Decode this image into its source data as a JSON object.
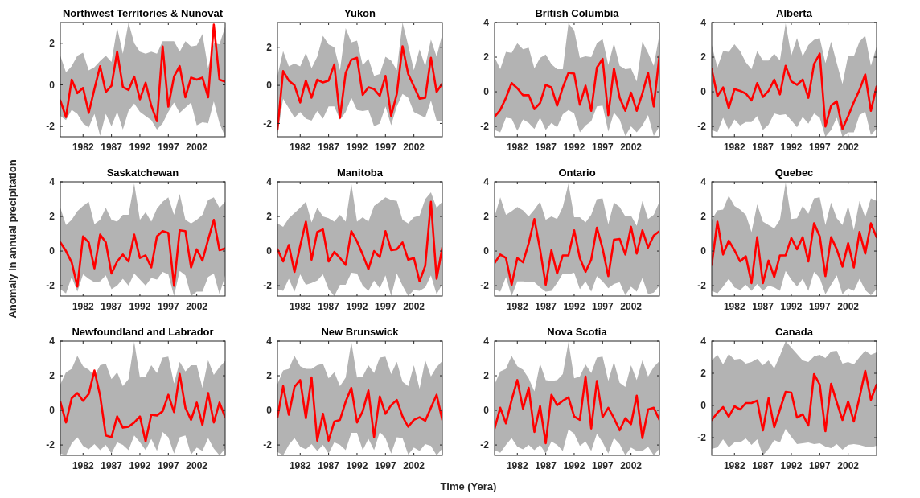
{
  "chart_data": [
    {
      "type": "line",
      "title": "Northwest Territories & Nunovat",
      "x": [
        1978,
        1979,
        1980,
        1981,
        1982,
        1983,
        1984,
        1985,
        1986,
        1987,
        1988,
        1989,
        1990,
        1991,
        1992,
        1993,
        1994,
        1995,
        1996,
        1997,
        1998,
        1999,
        2000,
        2001,
        2002,
        2003,
        2004,
        2005,
        2006,
        2007
      ],
      "xlim": [
        1978,
        2007
      ],
      "xticks": [
        1982,
        1987,
        1992,
        1997,
        2002
      ],
      "ylim": [
        -2.5,
        3
      ],
      "yticks": [
        -2,
        0,
        2
      ],
      "series": [
        {
          "color": "#ff0000",
          "values": [
            -0.75,
            -1.55,
            0.25,
            -0.4,
            -0.15,
            -1.35,
            -0.2,
            0.9,
            -0.35,
            -0.05,
            1.6,
            -0.1,
            -0.25,
            0.4,
            -0.7,
            0.1,
            -1.0,
            -1.75,
            1.85,
            -1.05,
            0.4,
            0.9,
            -0.6,
            0.35,
            0.25,
            0.35,
            -0.6,
            2.9,
            0.25,
            0.15
          ],
          "upper": [
            1.4,
            0.6,
            0.9,
            1.4,
            1.55,
            0.7,
            0.85,
            1.15,
            1.4,
            1.1,
            2.75,
            1.5,
            3.0,
            2.0,
            1.6,
            1.5,
            1.6,
            1.5,
            2.1,
            2.1,
            2.1,
            1.6,
            2.1,
            1.85,
            1.9,
            2.45,
            0.8,
            2.0,
            1.95,
            2.8
          ],
          "lower": [
            -1.5,
            -1.7,
            -1.2,
            -1.4,
            -1.85,
            -2.05,
            -1.4,
            -2.45,
            -1.4,
            -2.0,
            -1.3,
            -2.15,
            -1.25,
            -0.9,
            -1.3,
            -1.5,
            -1.7,
            -2.15,
            -1.85,
            -1.3,
            -0.85,
            -1.35,
            -1.1,
            -0.85,
            -1.95,
            -1.8,
            -1.85,
            -0.8,
            -1.85,
            -2.5
          ]
        }
      ]
    },
    {
      "type": "line",
      "title": "Yukon",
      "x": [
        1978,
        1979,
        1980,
        1981,
        1982,
        1983,
        1984,
        1985,
        1986,
        1987,
        1988,
        1989,
        1990,
        1991,
        1992,
        1993,
        1994,
        1995,
        1996,
        1997,
        1998,
        1999,
        2000,
        2001,
        2002,
        2003,
        2004,
        2005,
        2006,
        2007
      ],
      "xlim": [
        1978,
        2007
      ],
      "xticks": [
        1982,
        1987,
        1992,
        1997,
        2002
      ],
      "ylim": [
        -2.7,
        3.3
      ],
      "yticks": [
        -2,
        0,
        2
      ],
      "series": [
        {
          "color": "#ff0000",
          "values": [
            -2.3,
            0.75,
            0.25,
            0.0,
            -0.9,
            0.25,
            -0.65,
            0.3,
            0.15,
            0.25,
            1.1,
            -1.7,
            0.65,
            1.35,
            1.45,
            -0.5,
            -0.1,
            -0.2,
            -0.55,
            0.5,
            -1.6,
            -0.45,
            2.05,
            0.6,
            -0.05,
            -0.7,
            -0.65,
            1.45,
            -0.35,
            0.1
          ],
          "upper": [
            0.5,
            1.8,
            1.0,
            1.15,
            1.0,
            1.7,
            0.9,
            1.5,
            2.6,
            2.15,
            2.0,
            0.8,
            3.0,
            2.25,
            2.35,
            1.05,
            1.4,
            0.5,
            0.6,
            1.5,
            1.3,
            0.8,
            3.3,
            2.1,
            0.8,
            1.9,
            1.0,
            2.4,
            1.5,
            2.7
          ],
          "lower": [
            -2.6,
            -0.7,
            -1.2,
            -1.7,
            -1.4,
            -1.75,
            -1.85,
            -1.35,
            -1.75,
            -1.1,
            -1.1,
            -1.8,
            -1.4,
            -0.65,
            -1.3,
            -1.35,
            -1.3,
            -2.15,
            -2.0,
            -1.1,
            -2.1,
            -1.1,
            -0.45,
            -0.65,
            -1.4,
            -1.55,
            -1.7,
            -0.8,
            -1.85,
            -1.9
          ]
        }
      ]
    },
    {
      "type": "line",
      "title": "British Columbia",
      "x": [
        1978,
        1979,
        1980,
        1981,
        1982,
        1983,
        1984,
        1985,
        1986,
        1987,
        1988,
        1989,
        1990,
        1991,
        1992,
        1993,
        1994,
        1995,
        1996,
        1997,
        1998,
        1999,
        2000,
        2001,
        2002,
        2003,
        2004,
        2005,
        2006,
        2007
      ],
      "xlim": [
        1978,
        2007
      ],
      "xticks": [
        1982,
        1987,
        1992,
        1997,
        2002
      ],
      "ylim": [
        -2.6,
        4
      ],
      "yticks": [
        -2,
        0,
        2,
        4
      ],
      "series": [
        {
          "color": "#ff0000",
          "values": [
            -1.45,
            -1.05,
            -0.35,
            0.5,
            0.2,
            -0.2,
            -0.2,
            -1.0,
            -0.65,
            0.4,
            0.25,
            -0.8,
            0.25,
            1.1,
            1.05,
            -0.75,
            0.35,
            -1.1,
            1.4,
            1.9,
            -1.35,
            1.35,
            -0.35,
            -1.1,
            -0.05,
            -1.1,
            -0.1,
            1.1,
            -0.85,
            2.1
          ],
          "upper": [
            2.0,
            1.3,
            2.3,
            2.25,
            2.8,
            2.45,
            2.55,
            1.35,
            1.95,
            2.15,
            1.6,
            1.3,
            1.3,
            3.95,
            3.55,
            1.95,
            2.05,
            2.0,
            2.8,
            3.05,
            1.55,
            2.8,
            1.5,
            1.3,
            1.35,
            0.6,
            2.9,
            2.25,
            1.5,
            3.3
          ],
          "lower": [
            -2.2,
            -2.35,
            -1.5,
            -1.55,
            -2.25,
            -1.6,
            -1.8,
            -2.15,
            -1.5,
            -2.2,
            -1.8,
            -2.05,
            -1.3,
            -1.05,
            -1.25,
            -2.35,
            -1.95,
            -1.7,
            -0.85,
            -0.8,
            -2.3,
            -1.2,
            -1.6,
            -2.55,
            -2.0,
            -2.35,
            -1.95,
            -1.35,
            -2.55,
            -2.0
          ]
        }
      ]
    },
    {
      "type": "line",
      "title": "Alberta",
      "x": [
        1978,
        1979,
        1980,
        1981,
        1982,
        1983,
        1984,
        1985,
        1986,
        1987,
        1988,
        1989,
        1990,
        1991,
        1992,
        1993,
        1994,
        1995,
        1996,
        1997,
        1998,
        1999,
        2000,
        2001,
        2002,
        2003,
        2004,
        2005,
        2006,
        2007
      ],
      "xlim": [
        1978,
        2007
      ],
      "xticks": [
        1982,
        1987,
        1992,
        1997,
        2002
      ],
      "ylim": [
        -2.6,
        4
      ],
      "yticks": [
        -2,
        0,
        2,
        4
      ],
      "series": [
        {
          "color": "#ff0000",
          "values": [
            1.3,
            -0.25,
            0.25,
            -0.95,
            0.15,
            0.05,
            -0.1,
            -0.5,
            0.5,
            -0.3,
            0.05,
            0.7,
            -0.15,
            1.5,
            0.6,
            0.4,
            0.7,
            -0.35,
            1.6,
            2.2,
            -2.0,
            -0.8,
            -0.55,
            -2.15,
            -1.4,
            -0.6,
            0.1,
            1.0,
            -1.1,
            0.3
          ],
          "upper": [
            2.7,
            1.4,
            2.35,
            2.3,
            2.75,
            2.35,
            1.7,
            1.3,
            2.35,
            1.8,
            1.8,
            2.2,
            1.8,
            3.95,
            2.1,
            3.1,
            2.05,
            2.7,
            3.0,
            3.1,
            1.65,
            2.9,
            1.65,
            0.45,
            2.1,
            2.05,
            2.9,
            3.25,
            1.5,
            2.6
          ],
          "lower": [
            -2.2,
            -2.35,
            -1.5,
            -2.2,
            -1.6,
            -1.95,
            -1.75,
            -1.75,
            -1.4,
            -2.2,
            -1.9,
            -1.25,
            -1.35,
            -1.3,
            -1.65,
            -2.05,
            -1.45,
            -1.85,
            -1.25,
            -1.5,
            -2.6,
            -2.2,
            -1.5,
            -2.6,
            -2.35,
            -2.35,
            -1.35,
            -1.15,
            -2.5,
            -2.15
          ]
        }
      ]
    },
    {
      "type": "line",
      "title": "Saskatchewan",
      "ylabel": "Anomaly in annual precipitation",
      "x": [
        1978,
        1979,
        1980,
        1981,
        1982,
        1983,
        1984,
        1985,
        1986,
        1987,
        1988,
        1989,
        1990,
        1991,
        1992,
        1993,
        1994,
        1995,
        1996,
        1997,
        1998,
        1999,
        2000,
        2001,
        2002,
        2003,
        2004,
        2005,
        2006,
        2007
      ],
      "xlim": [
        1978,
        2007
      ],
      "xticks": [
        1982,
        1987,
        1992,
        1997,
        2002
      ],
      "ylim": [
        -2.6,
        4
      ],
      "yticks": [
        -2,
        0,
        2,
        4
      ],
      "series": [
        {
          "color": "#ff0000",
          "values": [
            0.5,
            0.0,
            -0.65,
            -2.05,
            0.85,
            0.5,
            -1.0,
            0.95,
            0.5,
            -1.3,
            -0.6,
            -0.2,
            -0.6,
            0.95,
            -0.4,
            -0.25,
            -0.95,
            0.85,
            1.15,
            1.05,
            -2.0,
            1.2,
            1.15,
            -0.95,
            0.1,
            -0.55,
            0.65,
            1.8,
            0.05,
            0.15
          ],
          "upper": [
            2.5,
            1.5,
            1.8,
            2.3,
            2.6,
            2.85,
            1.55,
            1.8,
            2.5,
            1.8,
            1.7,
            2.1,
            2.1,
            3.9,
            1.8,
            2.25,
            1.7,
            2.45,
            2.85,
            3.1,
            2.1,
            3.3,
            1.8,
            1.6,
            1.8,
            2.1,
            2.95,
            3.1,
            2.5,
            2.85
          ],
          "lower": [
            -2.2,
            -2.45,
            -1.5,
            -2.35,
            -1.35,
            -1.6,
            -1.8,
            -1.75,
            -1.4,
            -2.2,
            -2.0,
            -1.6,
            -2.0,
            -1.3,
            -1.65,
            -2.0,
            -1.55,
            -1.65,
            -1.2,
            -1.35,
            -2.6,
            -1.15,
            -1.4,
            -2.6,
            -2.35,
            -2.35,
            -1.5,
            -1.3,
            -2.5,
            -1.4
          ]
        }
      ]
    },
    {
      "type": "line",
      "title": "Manitoba",
      "x": [
        1978,
        1979,
        1980,
        1981,
        1982,
        1983,
        1984,
        1985,
        1986,
        1987,
        1988,
        1989,
        1990,
        1991,
        1992,
        1993,
        1994,
        1995,
        1996,
        1997,
        1998,
        1999,
        2000,
        2001,
        2002,
        2003,
        2004,
        2005,
        2006,
        2007
      ],
      "xlim": [
        1978,
        2007
      ],
      "xticks": [
        1982,
        1987,
        1992,
        1997,
        2002
      ],
      "ylim": [
        -2.6,
        4
      ],
      "yticks": [
        -2,
        0,
        2,
        4
      ],
      "series": [
        {
          "color": "#ff0000",
          "values": [
            0.1,
            -0.6,
            0.35,
            -1.2,
            0.3,
            1.7,
            -0.5,
            1.1,
            1.25,
            -0.6,
            -0.05,
            -0.4,
            -0.8,
            1.15,
            0.55,
            -0.2,
            -1.05,
            0.0,
            -0.35,
            1.15,
            0.05,
            0.1,
            0.5,
            -0.5,
            -0.4,
            -1.75,
            -0.85,
            2.85,
            -1.6,
            0.2
          ],
          "upper": [
            1.6,
            1.4,
            1.9,
            2.2,
            2.5,
            2.85,
            1.65,
            2.5,
            2.0,
            1.9,
            1.7,
            2.1,
            1.7,
            3.9,
            1.7,
            1.95,
            1.7,
            2.6,
            2.85,
            3.1,
            2.95,
            2.9,
            1.8,
            1.6,
            1.95,
            2.05,
            3.0,
            3.4,
            2.5,
            2.85
          ],
          "lower": [
            -2.2,
            -2.3,
            -1.6,
            -2.35,
            -1.35,
            -1.95,
            -1.85,
            -1.7,
            -1.35,
            -2.2,
            -2.6,
            -1.95,
            -1.95,
            -1.25,
            -1.3,
            -2.0,
            -2.3,
            -1.7,
            -2.15,
            -1.4,
            -2.6,
            -1.3,
            -2.0,
            -2.6,
            -2.25,
            -2.3,
            -2.1,
            -1.4,
            -2.5,
            -1.9
          ]
        }
      ]
    },
    {
      "type": "line",
      "title": "Ontario",
      "x": [
        1978,
        1979,
        1980,
        1981,
        1982,
        1983,
        1984,
        1985,
        1986,
        1987,
        1988,
        1989,
        1990,
        1991,
        1992,
        1993,
        1994,
        1995,
        1996,
        1997,
        1998,
        1999,
        2000,
        2001,
        2002,
        2003,
        2004,
        2005,
        2006,
        2007
      ],
      "xlim": [
        1978,
        2007
      ],
      "xticks": [
        1982,
        1987,
        1992,
        1997,
        2002
      ],
      "ylim": [
        -2.6,
        4
      ],
      "yticks": [
        -2,
        0,
        2,
        4
      ],
      "series": [
        {
          "color": "#ff0000",
          "values": [
            -0.7,
            -0.2,
            -0.4,
            -1.95,
            -0.4,
            -0.65,
            0.45,
            1.85,
            0.1,
            -1.95,
            0.05,
            -1.3,
            -0.25,
            -0.25,
            1.2,
            -0.4,
            -1.2,
            -0.5,
            1.35,
            0.15,
            -1.45,
            0.65,
            0.7,
            -0.2,
            1.4,
            -0.15,
            1.2,
            0.2,
            0.9,
            1.15
          ],
          "upper": [
            2.0,
            3.1,
            2.1,
            2.3,
            2.55,
            2.35,
            2.0,
            2.4,
            2.85,
            1.8,
            2.0,
            1.85,
            2.55,
            3.9,
            1.95,
            1.95,
            1.65,
            2.1,
            3.0,
            3.05,
            1.55,
            2.8,
            2.55,
            2.0,
            2.05,
            1.45,
            2.9,
            1.85,
            2.1,
            2.85
          ],
          "lower": [
            -2.2,
            -2.35,
            -1.5,
            -2.6,
            -1.75,
            -1.75,
            -1.8,
            -1.8,
            -2.1,
            -2.35,
            -2.3,
            -1.85,
            -1.3,
            -1.35,
            -1.25,
            -2.2,
            -1.75,
            -2.35,
            -1.45,
            -1.75,
            -2.15,
            -1.9,
            -1.8,
            -2.55,
            -2.05,
            -2.35,
            -1.55,
            -2.5,
            -2.4,
            -2.0
          ]
        }
      ]
    },
    {
      "type": "line",
      "title": "Quebec",
      "x": [
        1978,
        1979,
        1980,
        1981,
        1982,
        1983,
        1984,
        1985,
        1986,
        1987,
        1988,
        1989,
        1990,
        1991,
        1992,
        1993,
        1994,
        1995,
        1996,
        1997,
        1998,
        1999,
        2000,
        2001,
        2002,
        2003,
        2004,
        2005,
        2006,
        2007
      ],
      "xlim": [
        1978,
        2007
      ],
      "xticks": [
        1982,
        1987,
        1992,
        1997,
        2002
      ],
      "ylim": [
        -2.6,
        4
      ],
      "yticks": [
        -2,
        0,
        2,
        4
      ],
      "series": [
        {
          "color": "#ff0000",
          "values": [
            -0.8,
            1.7,
            -0.2,
            0.6,
            0.05,
            -0.6,
            -0.3,
            -1.85,
            0.8,
            -1.85,
            -0.55,
            -1.5,
            -0.25,
            -0.25,
            0.75,
            0.1,
            0.8,
            -0.6,
            1.6,
            0.85,
            -1.45,
            0.8,
            0.1,
            -0.9,
            0.45,
            -0.95,
            1.1,
            -0.15,
            1.6,
            0.8
          ],
          "upper": [
            1.8,
            2.35,
            2.4,
            3.2,
            2.6,
            2.4,
            2.1,
            1.1,
            2.7,
            1.7,
            1.5,
            1.3,
            1.8,
            3.95,
            1.85,
            1.9,
            2.6,
            2.15,
            3.05,
            3.1,
            1.5,
            2.8,
            1.9,
            1.5,
            2.6,
            1.2,
            2.9,
            1.95,
            3.05,
            2.9
          ],
          "lower": [
            -2.3,
            -2.45,
            -2.05,
            -1.6,
            -2.1,
            -2.25,
            -1.95,
            -2.3,
            -1.9,
            -2.3,
            -2.0,
            -2.1,
            -2.3,
            -1.15,
            -1.65,
            -2.05,
            -1.6,
            -2.3,
            -1.2,
            -1.55,
            -2.5,
            -1.95,
            -1.4,
            -2.5,
            -2.15,
            -2.3,
            -1.6,
            -2.25,
            -2.55,
            -2.2
          ]
        }
      ]
    },
    {
      "type": "line",
      "title": "Newfoundland and Labrador",
      "x": [
        1978,
        1979,
        1980,
        1981,
        1982,
        1983,
        1984,
        1985,
        1986,
        1987,
        1988,
        1989,
        1990,
        1991,
        1992,
        1993,
        1994,
        1995,
        1996,
        1997,
        1998,
        1999,
        2000,
        2001,
        2002,
        2003,
        2004,
        2005,
        2006,
        2007
      ],
      "xlim": [
        1978,
        2007
      ],
      "xticks": [
        1982,
        1987,
        1992,
        1997,
        2002
      ],
      "ylim": [
        -2.6,
        4
      ],
      "yticks": [
        -2,
        0,
        2,
        4
      ],
      "series": [
        {
          "color": "#ff0000",
          "values": [
            0.5,
            -0.7,
            0.7,
            1.0,
            0.55,
            0.95,
            2.3,
            0.85,
            -1.45,
            -1.55,
            -0.35,
            -1.0,
            -0.95,
            -0.7,
            -0.35,
            -1.8,
            -0.25,
            -0.3,
            -0.05,
            0.9,
            -0.1,
            2.1,
            0.15,
            -0.55,
            0.45,
            -0.85,
            1.0,
            -0.7,
            0.45,
            -0.4
          ],
          "upper": [
            1.5,
            2.2,
            2.4,
            3.15,
            2.55,
            2.35,
            2.0,
            2.6,
            2.7,
            1.8,
            2.2,
            1.4,
            1.8,
            3.95,
            1.9,
            1.95,
            2.6,
            2.15,
            3.05,
            3.1,
            1.55,
            2.8,
            2.25,
            2.6,
            2.6,
            1.3,
            2.9,
            2.05,
            2.5,
            2.85
          ],
          "lower": [
            -2.5,
            -2.6,
            -1.9,
            -1.55,
            -2.05,
            -2.25,
            -1.95,
            -2.3,
            -2.0,
            -2.5,
            -1.85,
            -2.0,
            -2.3,
            -1.45,
            -1.85,
            -2.3,
            -1.65,
            -2.35,
            -1.25,
            -1.55,
            -2.5,
            -1.55,
            -1.45,
            -2.55,
            -2.15,
            -2.35,
            -1.6,
            -2.2,
            -2.6,
            -2.2
          ]
        }
      ]
    },
    {
      "type": "line",
      "title": "New Brunswick",
      "xlabel": "Time (Yera)",
      "x": [
        1978,
        1979,
        1980,
        1981,
        1982,
        1983,
        1984,
        1985,
        1986,
        1987,
        1988,
        1989,
        1990,
        1991,
        1992,
        1993,
        1994,
        1995,
        1996,
        1997,
        1998,
        1999,
        2000,
        2001,
        2002,
        2003,
        2004,
        2005,
        2006,
        2007
      ],
      "xlim": [
        1978,
        2007
      ],
      "xticks": [
        1982,
        1987,
        1992,
        1997,
        2002
      ],
      "ylim": [
        -2.6,
        4
      ],
      "yticks": [
        -2,
        0,
        2,
        4
      ],
      "series": [
        {
          "color": "#ff0000",
          "values": [
            -0.4,
            1.4,
            -0.25,
            1.35,
            1.75,
            -0.45,
            1.9,
            -1.75,
            -0.2,
            -1.75,
            -0.65,
            -0.55,
            0.5,
            1.3,
            -0.7,
            -0.05,
            1.15,
            -1.55,
            0.8,
            -0.2,
            0.3,
            0.6,
            -0.35,
            -0.95,
            -0.55,
            -0.4,
            -0.6,
            0.15,
            0.9,
            -0.55
          ],
          "upper": [
            1.5,
            2.3,
            2.4,
            3.15,
            2.55,
            2.4,
            2.4,
            2.6,
            2.7,
            1.85,
            2.2,
            1.4,
            1.9,
            3.95,
            1.9,
            1.95,
            2.6,
            2.15,
            3.05,
            3.1,
            2.1,
            2.8,
            1.65,
            1.4,
            2.6,
            1.25,
            2.9,
            1.95,
            2.5,
            2.85
          ],
          "lower": [
            -2.4,
            -2.6,
            -2.0,
            -1.6,
            -2.1,
            -2.25,
            -1.95,
            -2.35,
            -2.0,
            -2.5,
            -1.85,
            -2.0,
            -2.3,
            -1.3,
            -1.3,
            -2.3,
            -1.65,
            -2.3,
            -1.25,
            -1.6,
            -2.5,
            -1.55,
            -1.6,
            -2.55,
            -2.15,
            -2.35,
            -1.95,
            -2.05,
            -2.6,
            -2.2
          ]
        }
      ]
    },
    {
      "type": "line",
      "title": "Nova Scotia",
      "x": [
        1978,
        1979,
        1980,
        1981,
        1982,
        1983,
        1984,
        1985,
        1986,
        1987,
        1988,
        1989,
        1990,
        1991,
        1992,
        1993,
        1994,
        1995,
        1996,
        1997,
        1998,
        1999,
        2000,
        2001,
        2002,
        2003,
        2004,
        2005,
        2006,
        2007
      ],
      "xlim": [
        1978,
        2007
      ],
      "xticks": [
        1982,
        1987,
        1992,
        1997,
        2002
      ],
      "ylim": [
        -2.6,
        4
      ],
      "yticks": [
        -2,
        0,
        2,
        4
      ],
      "series": [
        {
          "color": "#ff0000",
          "values": [
            -1.05,
            0.15,
            -0.75,
            0.6,
            1.75,
            0.1,
            1.3,
            -1.25,
            0.25,
            -1.9,
            0.9,
            0.3,
            0.55,
            0.75,
            -0.35,
            -0.55,
            1.95,
            -1.05,
            1.7,
            -0.4,
            0.15,
            -0.45,
            -1.15,
            -0.45,
            -0.8,
            0.85,
            -1.6,
            0.05,
            0.15,
            -0.55
          ],
          "upper": [
            1.5,
            2.25,
            2.4,
            3.15,
            2.55,
            2.35,
            1.85,
            1.1,
            2.7,
            1.75,
            1.7,
            1.75,
            2.1,
            3.95,
            1.85,
            1.95,
            2.65,
            2.15,
            3.05,
            3.1,
            1.7,
            2.8,
            1.6,
            1.35,
            2.6,
            1.75,
            2.9,
            1.95,
            2.5,
            2.85
          ],
          "lower": [
            -2.3,
            -2.45,
            -2.0,
            -1.6,
            -2.1,
            -2.25,
            -2.0,
            -2.3,
            -2.0,
            -2.5,
            -1.8,
            -2.0,
            -2.35,
            -1.1,
            -1.35,
            -2.05,
            -1.8,
            -2.35,
            -1.35,
            -1.85,
            -2.5,
            -1.6,
            -1.95,
            -2.6,
            -2.15,
            -2.35,
            -2.35,
            -2.1,
            -2.6,
            -2.2
          ]
        }
      ]
    },
    {
      "type": "line",
      "title": "Canada",
      "x": [
        1978,
        1979,
        1980,
        1981,
        1982,
        1983,
        1984,
        1985,
        1986,
        1987,
        1988,
        1989,
        1990,
        1991,
        1992,
        1993,
        1994,
        1995,
        1996,
        1997,
        1998,
        1999,
        2000,
        2001,
        2002,
        2003,
        2004,
        2005,
        2006,
        2007
      ],
      "xlim": [
        1978,
        2007
      ],
      "xticks": [
        1982,
        1987,
        1992,
        1997,
        2002
      ],
      "ylim": [
        -3.1,
        4
      ],
      "yticks": [
        -2,
        0,
        2,
        4
      ],
      "series": [
        {
          "color": "#ff0000",
          "values": [
            -0.9,
            -0.45,
            -0.1,
            -0.7,
            -0.05,
            -0.25,
            0.15,
            0.15,
            0.3,
            -1.55,
            0.45,
            -1.35,
            -0.25,
            0.85,
            0.8,
            -0.75,
            -0.55,
            -1.25,
            1.95,
            1.3,
            -1.6,
            1.35,
            0.2,
            -0.9,
            0.25,
            -1.0,
            0.5,
            2.15,
            0.35,
            1.3
          ],
          "upper": [
            2.8,
            3.15,
            2.55,
            3.2,
            2.85,
            2.9,
            2.6,
            2.7,
            2.9,
            2.5,
            2.8,
            2.3,
            3.1,
            4.0,
            3.6,
            3.2,
            2.8,
            2.7,
            3.05,
            3.15,
            2.95,
            3.35,
            3.4,
            2.6,
            2.7,
            2.55,
            3.0,
            3.4,
            3.15,
            3.3
          ],
          "lower": [
            -2.7,
            -2.6,
            -2.1,
            -2.6,
            -2.3,
            -2.3,
            -2.05,
            -2.45,
            -2.1,
            -3.1,
            -2.7,
            -2.15,
            -2.3,
            -1.45,
            -1.95,
            -2.4,
            -2.35,
            -2.3,
            -2.4,
            -2.35,
            -2.55,
            -2.65,
            -2.4,
            -2.75,
            -2.45,
            -2.4,
            -2.45,
            -2.55,
            -2.6,
            -2.5
          ]
        }
      ]
    }
  ]
}
